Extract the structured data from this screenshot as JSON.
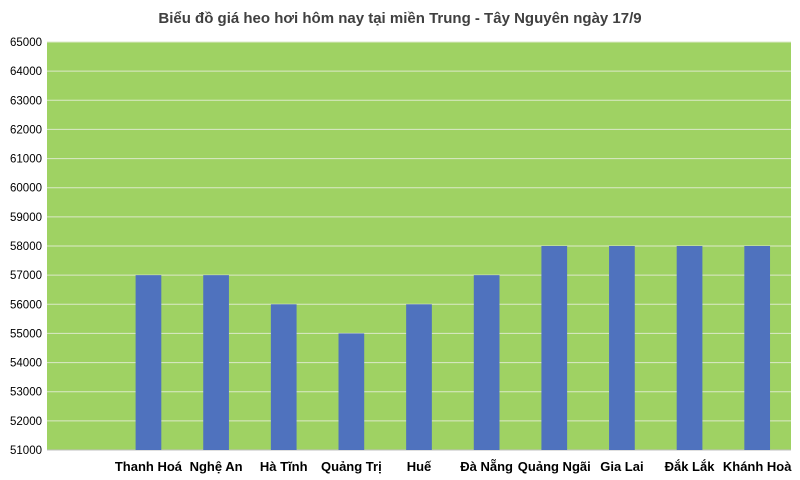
{
  "chart_data": {
    "type": "bar",
    "title": "Biểu đồ giá heo hơi hôm nay tại miền Trung - Tây Nguyên ngày 17/9",
    "xlabel": "",
    "ylabel": "",
    "categories": [
      "",
      "Thanh Hoá",
      "Nghệ An",
      "Hà Tĩnh",
      "Quảng Trị",
      "Huế",
      "Đà Nẵng",
      "Quảng Ngãi",
      "Gia Lai",
      "Đắk Lắk",
      "Khánh Hoà"
    ],
    "values": [
      null,
      57000,
      57000,
      56000,
      55000,
      56000,
      57000,
      58000,
      58000,
      58000,
      58000
    ],
    "ylim": [
      51000,
      65000
    ],
    "ytick_step": 1000,
    "grid": true,
    "legend": "none",
    "colors": {
      "plot_background": "#9fd263",
      "bar": "#4f72be",
      "gridline": "#dce9c8",
      "axis": "#bfbfbf"
    }
  }
}
